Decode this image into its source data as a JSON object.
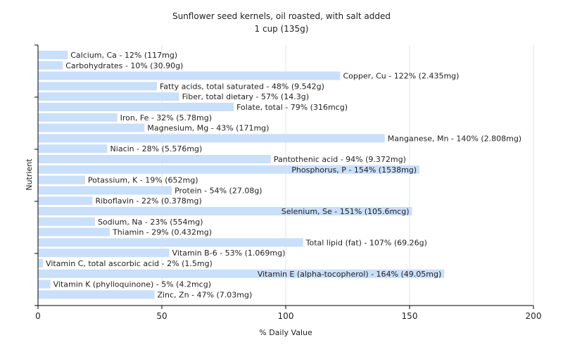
{
  "chart_data": {
    "type": "bar",
    "orientation": "horizontal",
    "title": "Sunflower seed kernels, oil roasted, with salt added",
    "subtitle": "1 cup (135g)",
    "xlabel": "% Daily Value",
    "ylabel": "Nutrient",
    "xlim": [
      0,
      200
    ],
    "xticks": [
      0,
      50,
      100,
      150,
      200
    ],
    "grid": true,
    "colors": {
      "bar": "#c9dffa"
    },
    "categories": [
      "Calcium, Ca - 12% (117mg)",
      "Carbohydrates - 10% (30.90g)",
      "Copper, Cu - 122% (2.435mg)",
      "Fatty acids, total saturated - 48% (9.542g)",
      "Fiber, total dietary - 57% (14.3g)",
      "Folate, total - 79% (316mcg)",
      "Iron, Fe - 32% (5.78mg)",
      "Magnesium, Mg - 43% (171mg)",
      "Manganese, Mn - 140% (2.808mg)",
      "Niacin - 28% (5.576mg)",
      "Pantothenic acid - 94% (9.372mg)",
      "Phosphorus, P - 154% (1538mg)",
      "Potassium, K - 19% (652mg)",
      "Protein - 54% (27.08g)",
      "Riboflavin - 22% (0.378mg)",
      "Selenium, Se - 151% (105.6mcg)",
      "Sodium, Na - 23% (554mg)",
      "Thiamin - 29% (0.432mg)",
      "Total lipid (fat) - 107% (69.26g)",
      "Vitamin B-6 - 53% (1.069mg)",
      "Vitamin C, total ascorbic acid - 2% (1.5mg)",
      "Vitamin E (alpha-tocopherol) - 164% (49.05mg)",
      "Vitamin K (phylloquinone) - 5% (4.2mcg)",
      "Zinc, Zn - 47% (7.03mg)"
    ],
    "values": [
      12,
      10,
      122,
      48,
      57,
      79,
      32,
      43,
      140,
      28,
      94,
      154,
      19,
      54,
      22,
      151,
      23,
      29,
      107,
      53,
      2,
      164,
      5,
      47
    ]
  }
}
